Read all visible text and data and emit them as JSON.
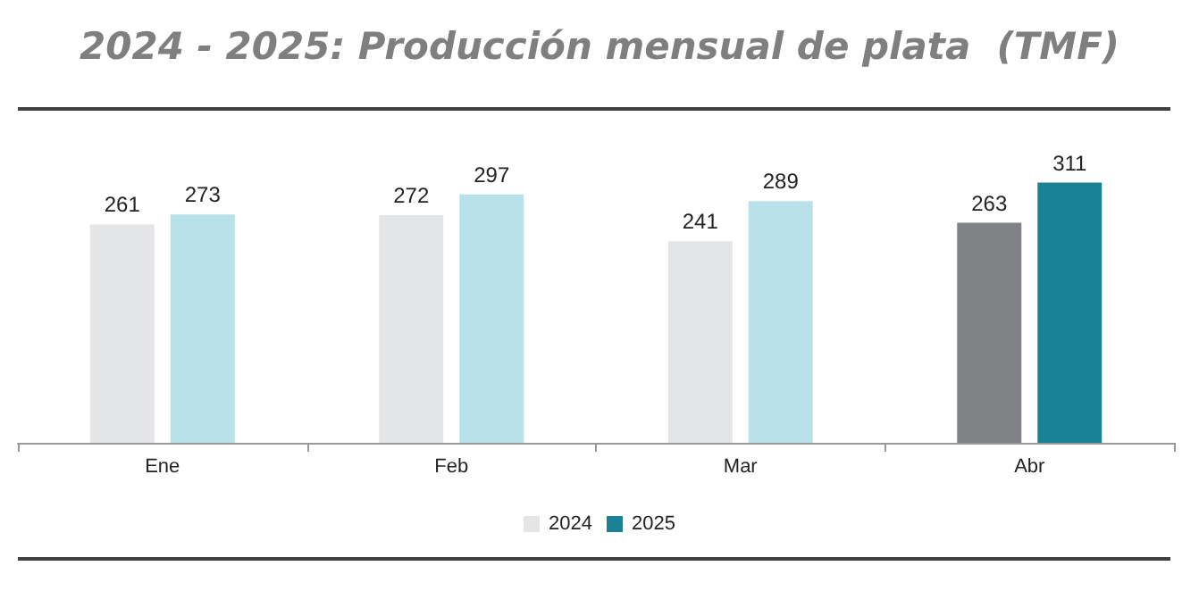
{
  "chart_data": {
    "type": "bar",
    "title": "2024 - 2025: Producción mensual de plata  (TMF)",
    "categories": [
      "Ene",
      "Feb",
      "Mar",
      "Abr"
    ],
    "series": [
      {
        "name": "2024",
        "color": "#e4e5e7",
        "colors": [
          "#e4e5e7",
          "#e4e5e7",
          "#e4e5e7",
          "#808285"
        ],
        "values": [
          261,
          272,
          241,
          263
        ]
      },
      {
        "name": "2025",
        "color": "#1b8296",
        "colors": [
          "#b8e1ea",
          "#b8e1ea",
          "#b8e1ea",
          "#1b8296"
        ],
        "values": [
          273,
          297,
          289,
          311
        ]
      }
    ],
    "data_labels": true,
    "legend": "bottom"
  }
}
